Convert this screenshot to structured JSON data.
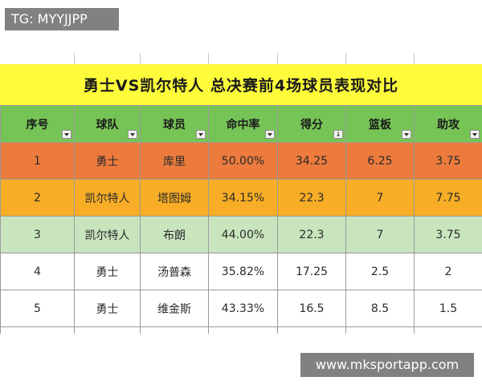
{
  "watermarks": {
    "top_left": "TG: MYYJJPP",
    "bottom_right": "www.mksportapp.com"
  },
  "colors": {
    "title_band": "#fefb3a",
    "header_row": "#77c456",
    "row_1": "#ec7b3d",
    "row_2": "#f7ad26",
    "row_3": "#c8e5bd",
    "row_default": "#ffffff"
  },
  "chart_data": {
    "type": "table",
    "title": "勇士VS凯尔特人  总决赛前4场球员表现对比",
    "columns": [
      "序号",
      "球队",
      "球员",
      "命中率",
      "得分",
      "篮板",
      "助攻"
    ],
    "sorted_column": "得分",
    "rows": [
      [
        "1",
        "勇士",
        "库里",
        "50.00%",
        "34.25",
        "6.25",
        "3.75"
      ],
      [
        "2",
        "凯尔特人",
        "塔图姆",
        "34.15%",
        "22.3",
        "7",
        "7.75"
      ],
      [
        "3",
        "凯尔特人",
        "布朗",
        "44.00%",
        "22.3",
        "7",
        "3.75"
      ],
      [
        "4",
        "勇士",
        "汤普森",
        "35.82%",
        "17.25",
        "2.5",
        "2"
      ],
      [
        "5",
        "勇士",
        "维金斯",
        "43.33%",
        "16.5",
        "8.5",
        "1.5"
      ]
    ]
  }
}
